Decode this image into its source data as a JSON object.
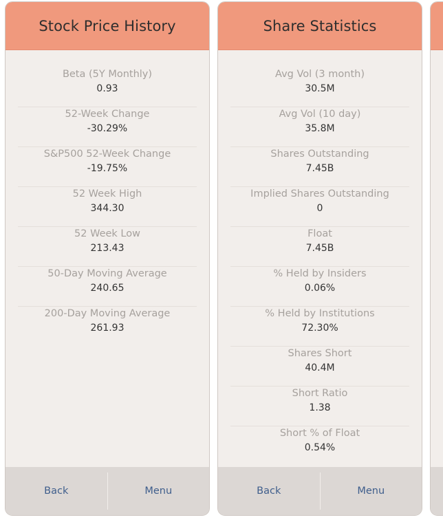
{
  "cards": [
    {
      "title": "Stock Price History",
      "stats": [
        {
          "label": "Beta (5Y Monthly)",
          "value": "0.93"
        },
        {
          "label": "52-Week Change",
          "value": "-30.29%"
        },
        {
          "label": "S&P500 52-Week Change",
          "value": "-19.75%"
        },
        {
          "label": "52 Week High",
          "value": "344.30"
        },
        {
          "label": "52 Week Low",
          "value": "213.43"
        },
        {
          "label": "50-Day Moving Average",
          "value": "240.65"
        },
        {
          "label": "200-Day Moving Average",
          "value": "261.93"
        }
      ],
      "back_label": "Back",
      "menu_label": "Menu"
    },
    {
      "title": "Share Statistics",
      "stats": [
        {
          "label": "Avg Vol (3 month)",
          "value": "30.5M"
        },
        {
          "label": "Avg Vol (10 day)",
          "value": "35.8M"
        },
        {
          "label": "Shares Outstanding",
          "value": "7.45B"
        },
        {
          "label": "Implied Shares Outstanding",
          "value": "0"
        },
        {
          "label": "Float",
          "value": "7.45B"
        },
        {
          "label": "% Held by Insiders",
          "value": "0.06%"
        },
        {
          "label": "% Held by Institutions",
          "value": "72.30%"
        },
        {
          "label": "Shares Short",
          "value": "40.4M"
        },
        {
          "label": "Short Ratio",
          "value": "1.38"
        },
        {
          "label": "Short % of Float",
          "value": "0.54%"
        }
      ],
      "back_label": "Back",
      "menu_label": "Menu"
    }
  ],
  "colors": {
    "header": "#f0997d",
    "card_bg": "#f2eeeb",
    "footer_bg": "#dcd7d4",
    "link": "#3f5e8c",
    "label": "#a6a19d",
    "value": "#333333"
  }
}
